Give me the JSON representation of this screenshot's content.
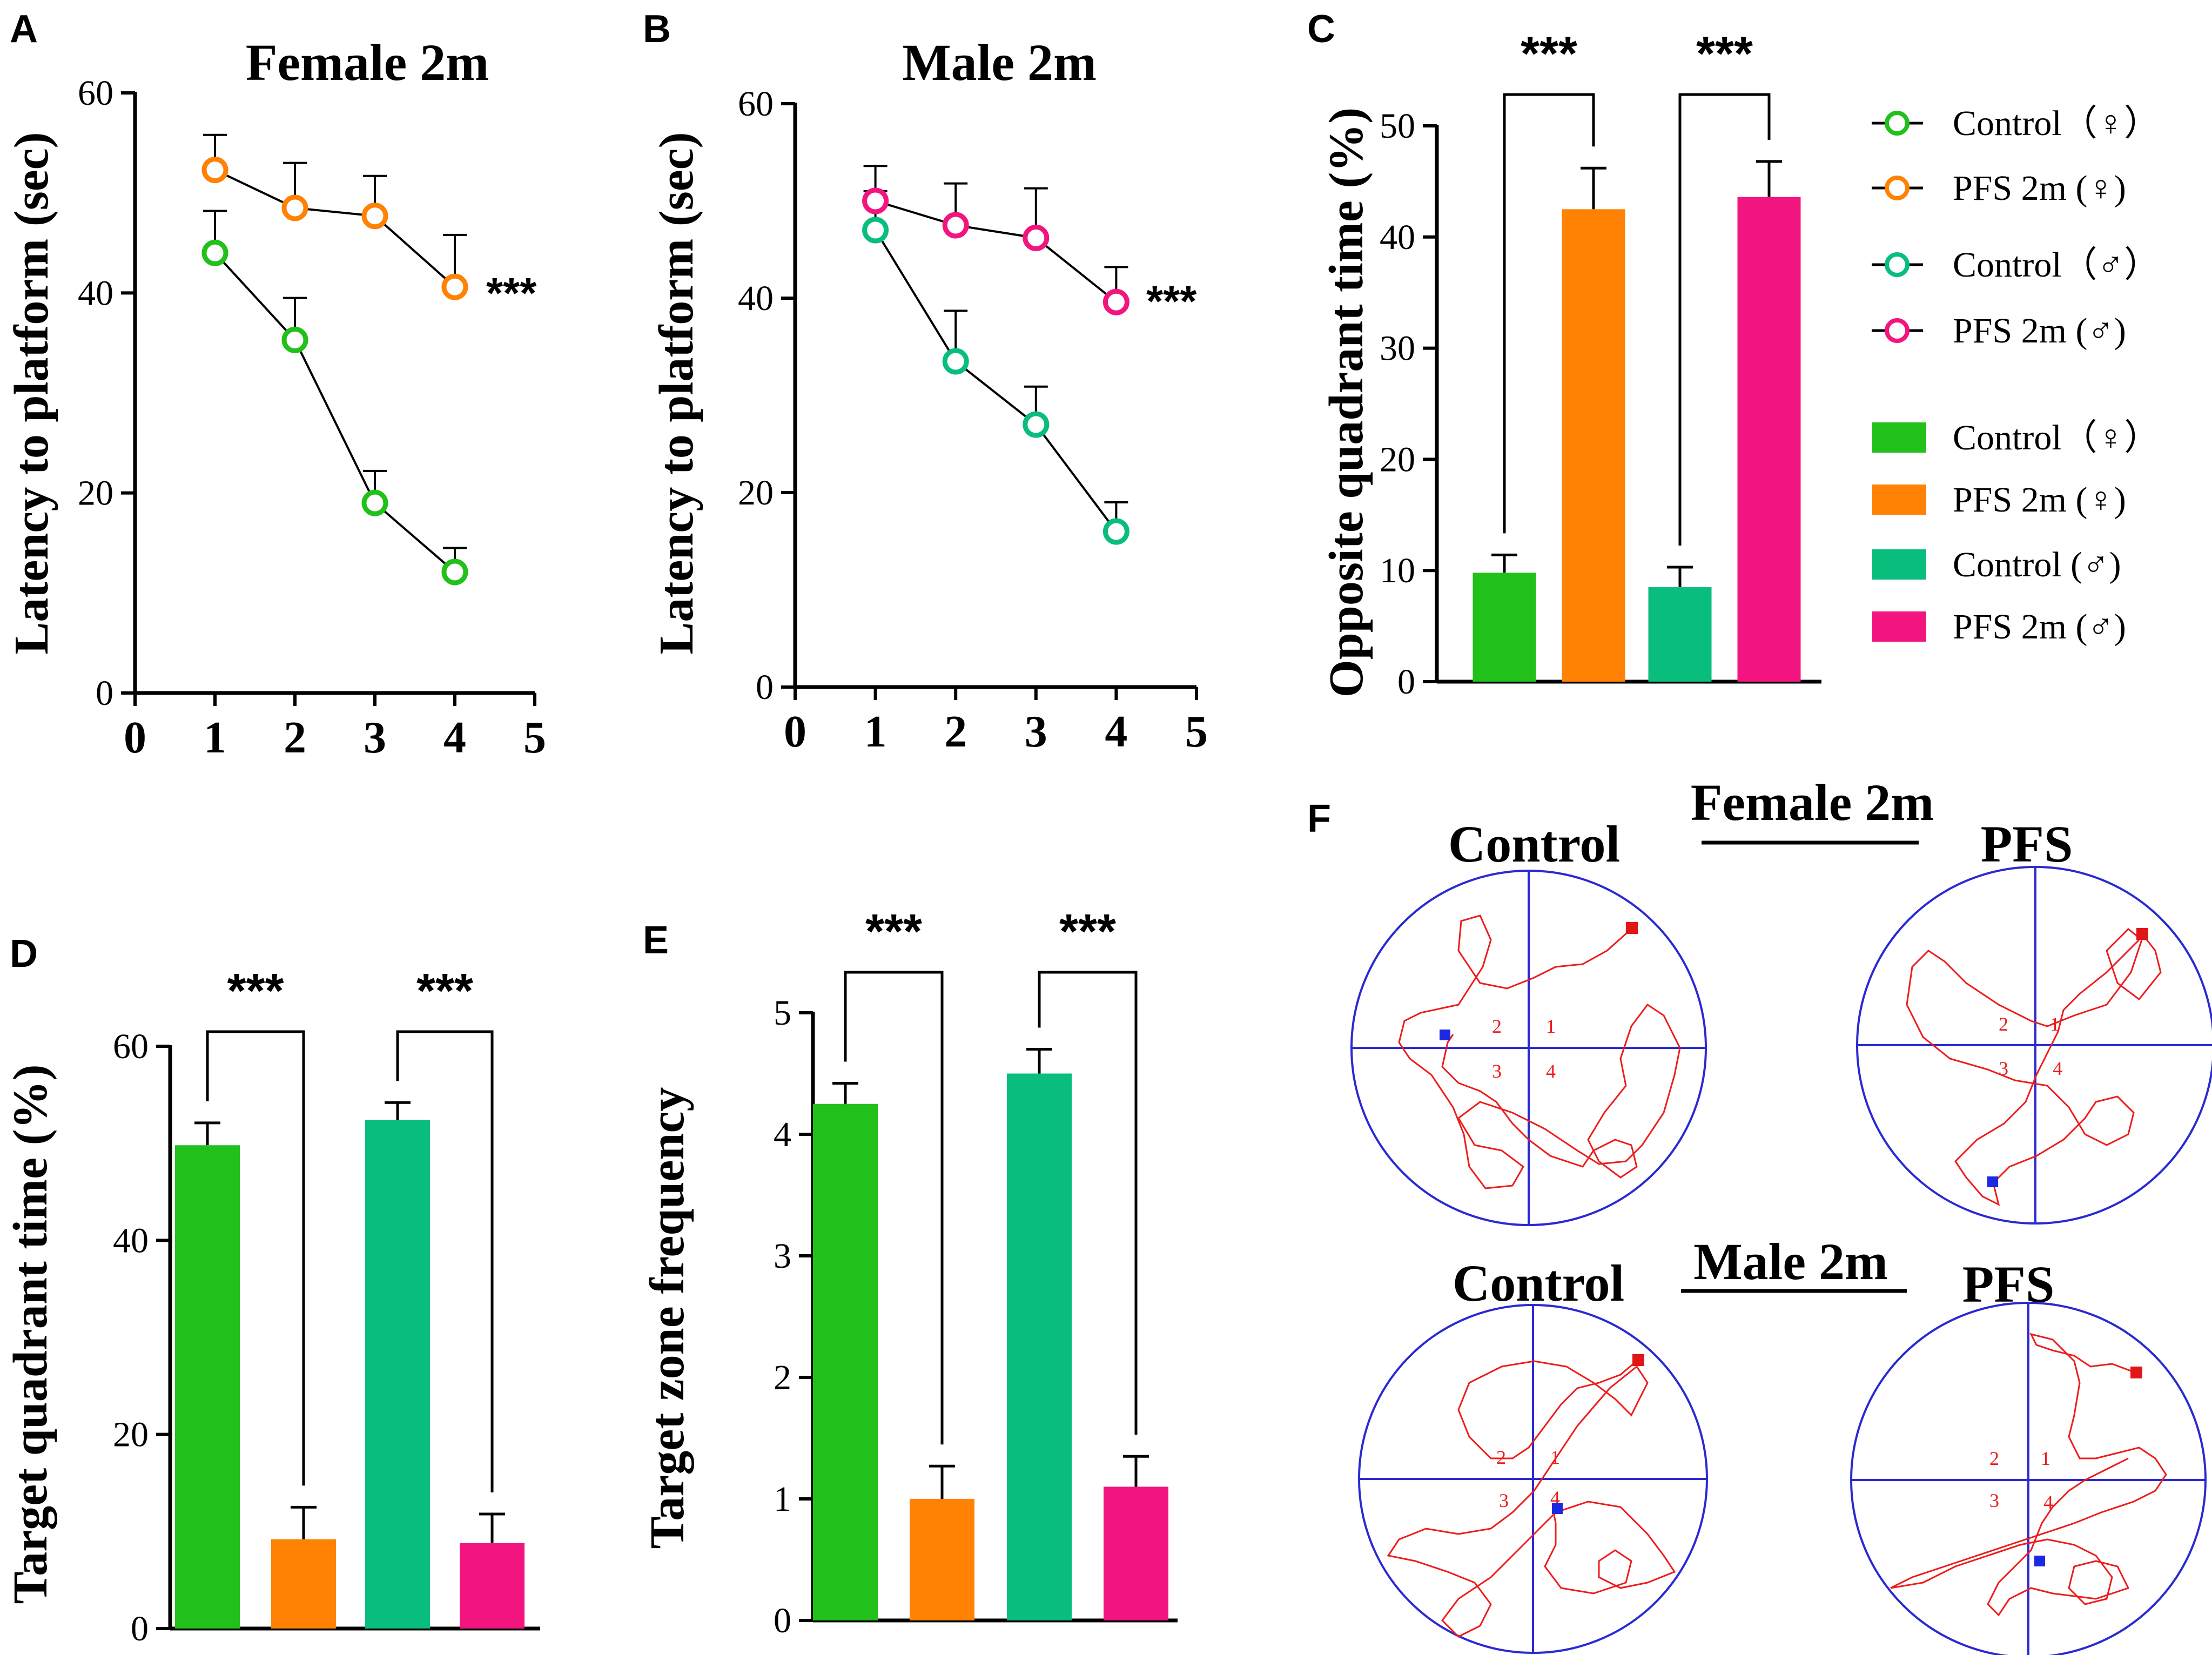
{
  "colors": {
    "control_female": "#22c01a",
    "pfs_female": "#ff8205",
    "control_male": "#09be7c",
    "pfs_male": "#f3157f",
    "track": "#ee1c1c",
    "pool": "#2a2ad2",
    "start_marker": "#e11616",
    "end_marker": "#1b29e0"
  },
  "panels": {
    "A": {
      "letter": "A"
    },
    "B": {
      "letter": "B"
    },
    "C": {
      "letter": "C"
    },
    "D": {
      "letter": "D"
    },
    "E": {
      "letter": "E"
    },
    "F": {
      "letter": "F",
      "female_heading": "Female 2m",
      "male_heading": "Male 2m",
      "control_label_female": "Control",
      "pfs_label_female": "PFS",
      "control_label_male": "Control",
      "pfs_label_male": "PFS",
      "quadrant_labels": [
        "1",
        "2",
        "3",
        "4"
      ]
    }
  },
  "legend": {
    "lines": [
      {
        "label": "Control（♀）",
        "color_key": "control_female"
      },
      {
        "label": "PFS 2m (♀)",
        "color_key": "pfs_female"
      },
      {
        "label": "Control（♂）",
        "color_key": "control_male"
      },
      {
        "label": "PFS 2m (♂)",
        "color_key": "pfs_male"
      }
    ],
    "bars": [
      {
        "label": "Control（♀）",
        "color_key": "control_female"
      },
      {
        "label": "PFS 2m (♀)",
        "color_key": "pfs_female"
      },
      {
        "label": "Control (♂)",
        "color_key": "control_male"
      },
      {
        "label": "PFS 2m (♂)",
        "color_key": "pfs_male"
      }
    ]
  },
  "chart_data": [
    {
      "id": "A",
      "type": "line",
      "title": "Female 2m",
      "xlabel": "",
      "ylabel": "Latency to platform (sec)",
      "xlim": [
        0,
        5
      ],
      "ylim": [
        0,
        60
      ],
      "xticks": [
        "0",
        "1",
        "2",
        "3",
        "4",
        "5"
      ],
      "yticks": [
        "0",
        "20",
        "40",
        "60"
      ],
      "series": [
        {
          "name": "Control (♀)",
          "color_key": "control_female",
          "x": [
            1,
            2,
            3,
            4
          ],
          "y": [
            44,
            35.3,
            19,
            12.1
          ],
          "err": [
            4.2,
            4.2,
            3.2,
            2.4
          ]
        },
        {
          "name": "PFS 2m (♀)",
          "color_key": "pfs_female",
          "x": [
            1,
            2,
            3,
            4
          ],
          "y": [
            52.3,
            48.5,
            47.7,
            40.6
          ],
          "err": [
            3.5,
            4.5,
            4.0,
            5.2
          ]
        }
      ],
      "annotation": "***"
    },
    {
      "id": "B",
      "type": "line",
      "title": "Male 2m",
      "xlabel": "",
      "ylabel": "Latency to platform (sec)",
      "xlim": [
        0,
        5
      ],
      "ylim": [
        0,
        60
      ],
      "xticks": [
        "0",
        "1",
        "2",
        "3",
        "4",
        "5"
      ],
      "yticks": [
        "0",
        "20",
        "40",
        "60"
      ],
      "series": [
        {
          "name": "Control (♂)",
          "color_key": "control_male",
          "x": [
            1,
            2,
            3,
            4
          ],
          "y": [
            47,
            33.5,
            27,
            16
          ],
          "err": [
            4.0,
            5.2,
            3.9,
            3.0
          ]
        },
        {
          "name": "PFS 2m (♂)",
          "color_key": "pfs_male",
          "x": [
            1,
            2,
            3,
            4
          ],
          "y": [
            50,
            47.5,
            46.2,
            39.6
          ],
          "err": [
            3.6,
            4.3,
            5.1,
            3.6
          ]
        }
      ],
      "annotation": "***"
    },
    {
      "id": "C",
      "type": "bar",
      "title": "",
      "xlabel": "",
      "ylabel": "Opposite quadrant time (%)",
      "ylim": [
        0,
        50
      ],
      "yticks": [
        "0",
        "10",
        "20",
        "30",
        "40",
        "50"
      ],
      "categories": [
        "Control (♀)",
        "PFS 2m (♀)",
        "Control (♂)",
        "PFS 2m (♂)"
      ],
      "color_keys": [
        "control_female",
        "pfs_female",
        "control_male",
        "pfs_male"
      ],
      "values": [
        9.8,
        42.5,
        8.5,
        43.6
      ],
      "err": [
        1.6,
        3.7,
        1.8,
        3.2
      ],
      "comparisons": [
        {
          "pair": [
            0,
            1
          ],
          "label": "***"
        },
        {
          "pair": [
            2,
            3
          ],
          "label": "***"
        }
      ]
    },
    {
      "id": "D",
      "type": "bar",
      "title": "",
      "xlabel": "",
      "ylabel": "Target quadrant time (%)",
      "ylim": [
        0,
        60
      ],
      "yticks": [
        "0",
        "20",
        "40",
        "60"
      ],
      "categories": [
        "Control (♀)",
        "PFS 2m (♀)",
        "Control (♂)",
        "PFS 2m (♂)"
      ],
      "color_keys": [
        "control_female",
        "pfs_female",
        "control_male",
        "pfs_male"
      ],
      "values": [
        49.8,
        9.2,
        52.4,
        8.8
      ],
      "err": [
        2.3,
        3.3,
        1.8,
        3.0
      ],
      "comparisons": [
        {
          "pair": [
            0,
            1
          ],
          "label": "***"
        },
        {
          "pair": [
            2,
            3
          ],
          "label": "***"
        }
      ]
    },
    {
      "id": "E",
      "type": "bar",
      "title": "",
      "xlabel": "",
      "ylabel": "Target zone frequency",
      "ylim": [
        0,
        5
      ],
      "yticks": [
        "0",
        "1",
        "2",
        "3",
        "4",
        "5"
      ],
      "categories": [
        "Control (♀)",
        "PFS 2m (♀)",
        "Control (♂)",
        "PFS 2m (♂)"
      ],
      "color_keys": [
        "control_female",
        "pfs_female",
        "control_male",
        "pfs_male"
      ],
      "values": [
        4.25,
        1.0,
        4.5,
        1.1
      ],
      "err": [
        0.17,
        0.27,
        0.2,
        0.25
      ],
      "comparisons": [
        {
          "pair": [
            0,
            1
          ],
          "label": "***"
        },
        {
          "pair": [
            2,
            3
          ],
          "label": "***"
        }
      ]
    }
  ]
}
